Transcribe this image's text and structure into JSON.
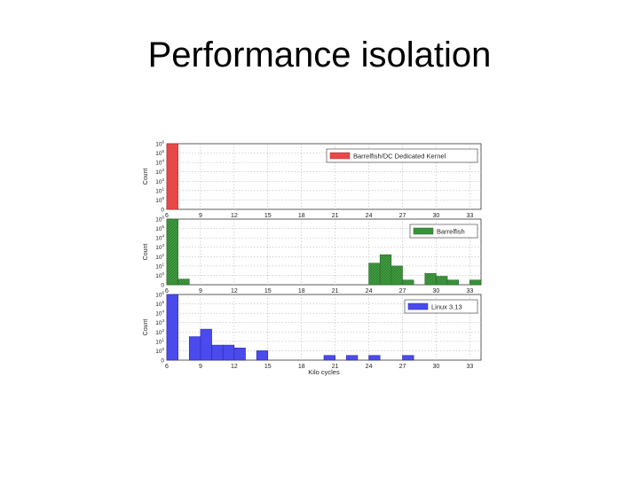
{
  "slide": {
    "title": "Performance isolation"
  },
  "chart_data": {
    "type": "bar",
    "xlabel": "Kilo cycles",
    "ylabel": "Count",
    "xlim": [
      6,
      34
    ],
    "x_ticks": [
      6,
      9,
      12,
      15,
      18,
      21,
      24,
      27,
      30,
      33
    ],
    "y_scale": "log",
    "y_ticks": [
      "10^6",
      "10^5",
      "10^4",
      "10^3",
      "10^2",
      "10^1",
      "10^0",
      "0"
    ],
    "bin_width": 1,
    "grid": true,
    "legend_position": "top-right",
    "panels": [
      {
        "series_name": "Barrelfish/DC Dedicated Kernel",
        "color": "#e84848",
        "edge_color": "#b03030",
        "bins": [
          {
            "x": 6,
            "log_count": 7.0
          }
        ]
      },
      {
        "series_name": "Barrelfish",
        "color": "#3f9f3f",
        "edge_color": "#2a6e2a",
        "bins": [
          {
            "x": 6,
            "log_count": 7.0
          },
          {
            "x": 7,
            "log_count": 0.6
          },
          {
            "x": 24,
            "log_count": 2.3
          },
          {
            "x": 25,
            "log_count": 3.2
          },
          {
            "x": 26,
            "log_count": 2.0
          },
          {
            "x": 27,
            "log_count": 0.5
          },
          {
            "x": 29,
            "log_count": 1.2
          },
          {
            "x": 30,
            "log_count": 0.9
          },
          {
            "x": 31,
            "log_count": 0.5
          },
          {
            "x": 33,
            "log_count": 0.5
          }
        ]
      },
      {
        "series_name": "Linux 3.13",
        "color": "#4a4aee",
        "edge_color": "#2a2aa8",
        "bins": [
          {
            "x": 6,
            "log_count": 7.0
          },
          {
            "x": 8,
            "log_count": 2.5
          },
          {
            "x": 9,
            "log_count": 3.3
          },
          {
            "x": 10,
            "log_count": 1.6
          },
          {
            "x": 11,
            "log_count": 1.6
          },
          {
            "x": 12,
            "log_count": 1.3
          },
          {
            "x": 14,
            "log_count": 1.0
          },
          {
            "x": 20,
            "log_count": 0.5
          },
          {
            "x": 22,
            "log_count": 0.5
          },
          {
            "x": 24,
            "log_count": 0.5
          },
          {
            "x": 27,
            "log_count": 0.5
          }
        ]
      }
    ]
  }
}
